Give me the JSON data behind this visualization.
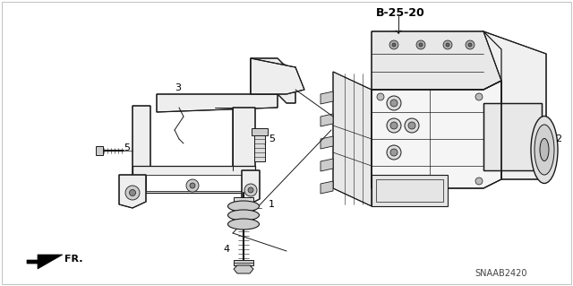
{
  "bg_color": "#ffffff",
  "text_color": "#000000",
  "line_color": "#1a1a1a",
  "diagram_code": "SNAAB2420",
  "ref_label": "B-25-20",
  "fr_label": "FR.",
  "figsize": [
    6.4,
    3.19
  ],
  "dpi": 100,
  "border_color": "#888888",
  "gray_fill": "#d0d0d0",
  "light_gray": "#e8e8e8"
}
